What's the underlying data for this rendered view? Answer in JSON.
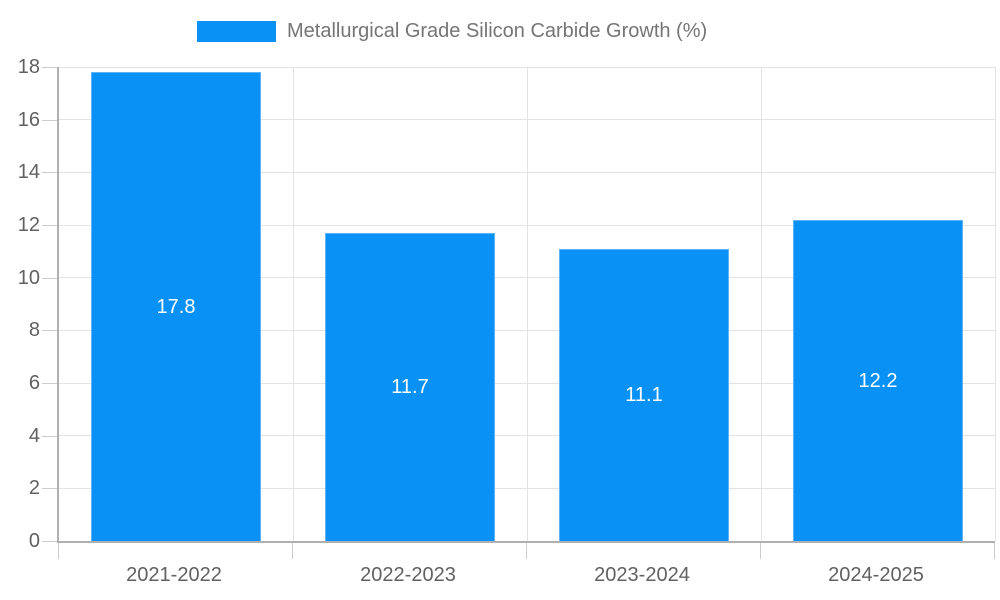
{
  "legend": {
    "label": "Metallurgical Grade Silicon Carbide Growth (%)"
  },
  "chart_data": {
    "type": "bar",
    "title": "Metallurgical Grade Silicon Carbide Growth (%)",
    "categories": [
      "2021-2022",
      "2022-2023",
      "2023-2024",
      "2024-2025"
    ],
    "values": [
      17.8,
      11.7,
      11.1,
      12.2
    ],
    "value_labels": [
      "17.8",
      "11.7",
      "11.1",
      "12.2"
    ],
    "xlabel": "",
    "ylabel": "",
    "ylim": [
      0,
      18
    ],
    "yticks": [
      0,
      2,
      4,
      6,
      8,
      10,
      12,
      14,
      16,
      18
    ],
    "grid": true,
    "legend_position": "top-center",
    "bar_width_fraction": 0.73
  },
  "colors": {
    "bar_fill": "#0991f5",
    "bar_border": "#5fb2f6",
    "value_label": "#ffffff",
    "axis_line": "#b0b0b0",
    "gridline": "#e3e3e3",
    "tick": "#cccccc",
    "axis_label": "#616161",
    "legend_text": "#757575",
    "background": "#ffffff"
  }
}
